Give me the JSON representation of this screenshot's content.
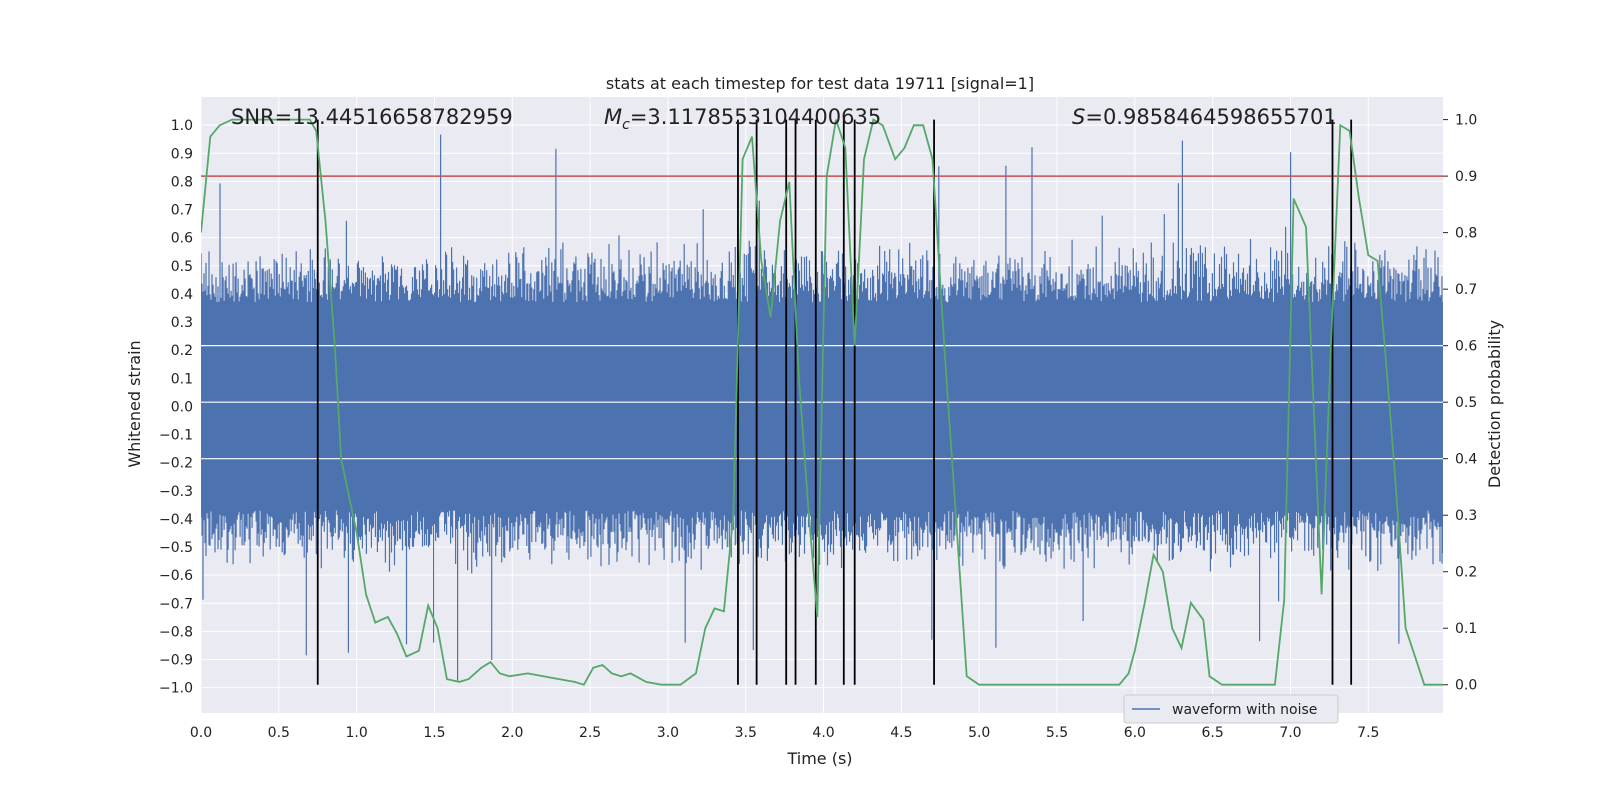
{
  "chart_data": {
    "type": "line",
    "title": "stats at each timestep for test data 19711 [signal=1]",
    "xlabel": "Time (s)",
    "ylabel": "Whitened strain",
    "y2label": "Detection probability",
    "xlim": [
      0.0,
      7.98
    ],
    "ylim": [
      -1.09,
      1.1
    ],
    "y2lim": [
      -0.05,
      1.04
    ],
    "x_ticks": [
      "0.0",
      "0.5",
      "1.0",
      "1.5",
      "2.0",
      "2.5",
      "3.0",
      "3.5",
      "4.0",
      "4.5",
      "5.0",
      "5.5",
      "6.0",
      "6.5",
      "7.0",
      "7.5"
    ],
    "y_ticks": [
      "1.0",
      "0.9",
      "0.8",
      "0.7",
      "0.6",
      "0.5",
      "0.4",
      "0.3",
      "0.2",
      "0.1",
      "0.0",
      "-0.1",
      "-0.2",
      "-0.3",
      "-0.4",
      "-0.5",
      "-0.6",
      "-0.7",
      "-0.8",
      "-0.9",
      "-1.0"
    ],
    "y2_ticks": [
      "1.0",
      "0.9",
      "0.8",
      "0.7",
      "0.6",
      "0.5",
      "0.4",
      "0.3",
      "0.2",
      "0.1",
      "0.0"
    ],
    "colors": {
      "background": "#eaeaf2",
      "grid": "#ffffff",
      "waveform": "#4c72b0",
      "probability": "#55a868",
      "threshold": "#c44e52",
      "marker": "#000000"
    },
    "annotations": {
      "snr": "SNR=13.44516658782959",
      "mc_symbol": "M",
      "mc_sub": "c",
      "mc_value": "=3.1178553104400635",
      "s_symbol": "S",
      "s_value": "=0.9858464598655701"
    },
    "threshold_y2": 0.9,
    "legend": {
      "label": "waveform with noise",
      "location": "lower-right"
    },
    "event_markers_x": [
      0.75,
      3.45,
      3.57,
      3.76,
      3.82,
      3.95,
      4.13,
      4.2,
      4.71,
      7.27,
      7.39
    ],
    "waveform_envelope": {
      "x": [
        0.0,
        0.5,
        1.0,
        1.5,
        2.0,
        2.5,
        3.0,
        3.5,
        4.0,
        4.5,
        5.0,
        5.5,
        6.0,
        6.5,
        7.0,
        7.5,
        7.98
      ],
      "core_upper": [
        0.37,
        0.37,
        0.37,
        0.37,
        0.37,
        0.37,
        0.37,
        0.37,
        0.37,
        0.37,
        0.37,
        0.37,
        0.37,
        0.37,
        0.37,
        0.37,
        0.37
      ],
      "core_lower": [
        -0.37,
        -0.37,
        -0.37,
        -0.37,
        -0.37,
        -0.37,
        -0.37,
        -0.37,
        -0.37,
        -0.37,
        -0.37,
        -0.37,
        -0.37,
        -0.37,
        -0.37,
        -0.37,
        -0.37
      ],
      "typical_peak": 0.6,
      "max_peak": 0.97,
      "min_trough": -0.99
    },
    "probability_series": {
      "x": [
        0.0,
        0.06,
        0.12,
        0.2,
        0.4,
        0.6,
        0.7,
        0.74,
        0.8,
        0.86,
        0.9,
        1.0,
        1.06,
        1.12,
        1.2,
        1.26,
        1.32,
        1.4,
        1.46,
        1.52,
        1.58,
        1.66,
        1.72,
        1.8,
        1.86,
        1.92,
        1.98,
        2.1,
        2.2,
        2.3,
        2.4,
        2.46,
        2.52,
        2.58,
        2.64,
        2.7,
        2.76,
        2.86,
        2.96,
        3.08,
        3.18,
        3.24,
        3.3,
        3.36,
        3.42,
        3.48,
        3.54,
        3.6,
        3.66,
        3.72,
        3.78,
        3.84,
        3.9,
        3.96,
        4.02,
        4.08,
        4.14,
        4.2,
        4.26,
        4.32,
        4.38,
        4.46,
        4.52,
        4.58,
        4.64,
        4.7,
        4.78,
        4.86,
        4.92,
        5.0,
        5.2,
        5.5,
        5.8,
        5.9,
        5.96,
        6.0,
        6.06,
        6.12,
        6.18,
        6.24,
        6.3,
        6.36,
        6.44,
        6.48,
        6.56,
        6.6,
        6.7,
        6.9,
        6.96,
        7.02,
        7.1,
        7.14,
        7.2,
        7.26,
        7.32,
        7.38,
        7.44,
        7.5,
        7.56,
        7.62,
        7.68,
        7.74,
        7.8,
        7.86,
        7.92,
        7.98
      ],
      "y": [
        0.8,
        0.97,
        0.99,
        1.0,
        1.0,
        1.0,
        1.0,
        0.98,
        0.82,
        0.6,
        0.4,
        0.27,
        0.16,
        0.11,
        0.12,
        0.09,
        0.05,
        0.06,
        0.14,
        0.1,
        0.01,
        0.005,
        0.01,
        0.03,
        0.04,
        0.02,
        0.015,
        0.02,
        0.015,
        0.01,
        0.005,
        0.0,
        0.03,
        0.035,
        0.02,
        0.015,
        0.02,
        0.005,
        0.0,
        0.0,
        0.02,
        0.1,
        0.135,
        0.13,
        0.3,
        0.93,
        0.97,
        0.75,
        0.65,
        0.82,
        0.89,
        0.55,
        0.32,
        0.12,
        0.9,
        1.0,
        0.95,
        0.6,
        0.93,
        1.0,
        0.99,
        0.93,
        0.95,
        0.99,
        0.99,
        0.93,
        0.58,
        0.26,
        0.015,
        0.0,
        0.0,
        0.0,
        0.0,
        0.0,
        0.02,
        0.06,
        0.14,
        0.23,
        0.2,
        0.1,
        0.065,
        0.145,
        0.115,
        0.015,
        0.0,
        0.0,
        0.0,
        0.0,
        0.15,
        0.86,
        0.81,
        0.55,
        0.16,
        0.6,
        0.99,
        0.98,
        0.86,
        0.76,
        0.75,
        0.55,
        0.34,
        0.1,
        0.05,
        0.0,
        0.0,
        0.0
      ]
    }
  }
}
